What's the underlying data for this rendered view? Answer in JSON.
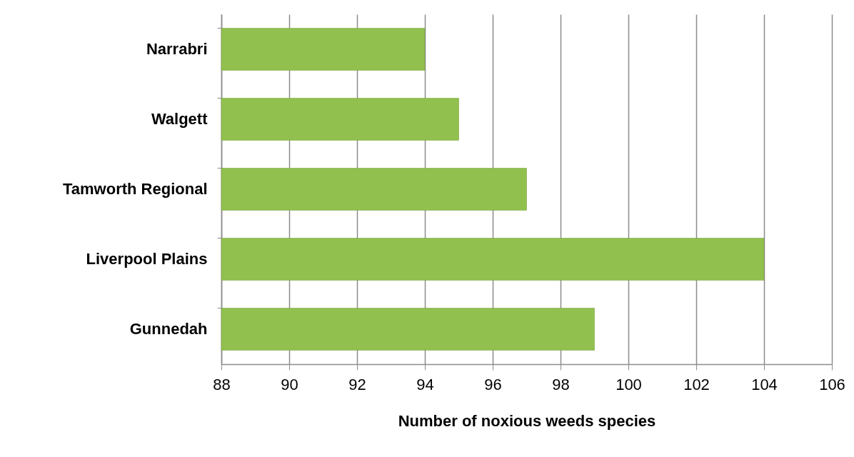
{
  "chart_data": {
    "type": "bar",
    "orientation": "horizontal",
    "xlabel": "Number of noxious weeds species",
    "categories": [
      "Narrabri",
      "Walgett",
      "Tamworth Regional",
      "Liverpool Plains",
      "Gunnedah"
    ],
    "values": [
      94,
      95,
      97,
      104,
      99
    ],
    "color": "#92c04e",
    "xlim": [
      88,
      106
    ],
    "xticks": [
      88,
      90,
      92,
      94,
      96,
      98,
      100,
      102,
      104,
      106
    ],
    "grid": "x"
  }
}
